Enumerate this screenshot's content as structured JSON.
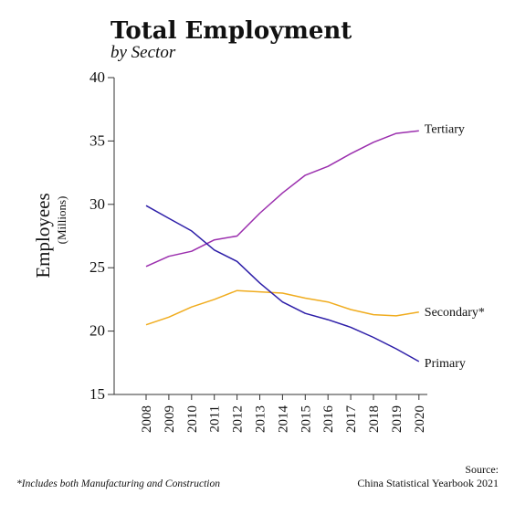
{
  "chart_data": {
    "type": "line",
    "title": "Total Employment",
    "subtitle": "by Sector",
    "ylabel": "Employees",
    "yunit": "(Millions)",
    "ylim": [
      15,
      40
    ],
    "yticks": [
      "15",
      "20",
      "25",
      "30",
      "35",
      "40"
    ],
    "x": [
      "2008",
      "2009",
      "2010",
      "2011",
      "2012",
      "2013",
      "2014",
      "2015",
      "2016",
      "2017",
      "2018",
      "2019",
      "2020"
    ],
    "grid": false,
    "series": [
      {
        "name": "Tertiary",
        "color": "#9b2fae",
        "values": [
          25.1,
          25.9,
          26.3,
          27.2,
          27.5,
          29.3,
          30.9,
          32.3,
          33.0,
          34.0,
          34.9,
          35.6,
          35.8
        ]
      },
      {
        "name": "Secondary*",
        "color": "#f0ac1e",
        "values": [
          20.5,
          21.1,
          21.9,
          22.5,
          23.2,
          23.1,
          23.0,
          22.6,
          22.3,
          21.7,
          21.3,
          21.2,
          21.5
        ]
      },
      {
        "name": "Primary",
        "color": "#2d1ea8",
        "values": [
          29.9,
          28.9,
          27.9,
          26.4,
          25.5,
          23.8,
          22.3,
          21.4,
          20.9,
          20.3,
          19.5,
          18.6,
          17.6
        ]
      }
    ]
  },
  "footnote": "*Includes both Manufacturing and Construction",
  "source_label": "Source:",
  "source_text": "China Statistical Yearbook 2021"
}
